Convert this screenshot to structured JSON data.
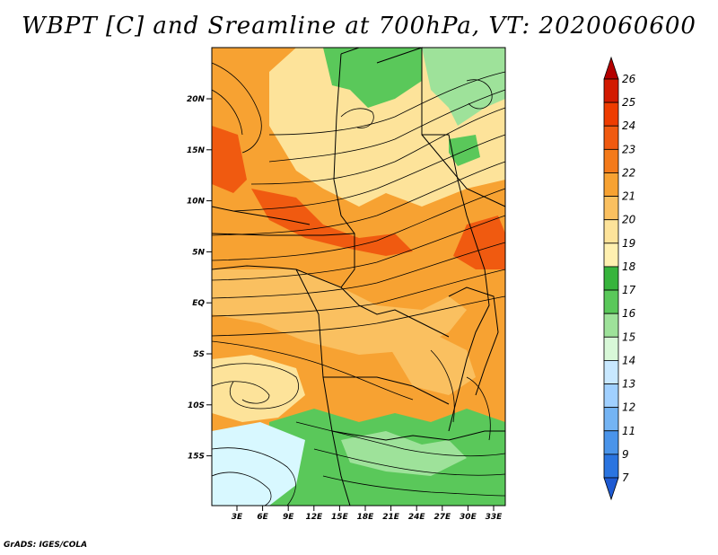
{
  "title": "WBPT [C] and Sreamline at 700hPa, VT: 2020060600",
  "credit": "GrADS: IGES/COLA",
  "lat_labels": [
    "20N",
    "15N",
    "10N",
    "5N",
    "EQ",
    "5S",
    "10S",
    "15S"
  ],
  "lon_labels": [
    "3E",
    "6E",
    "9E",
    "12E",
    "15E",
    "18E",
    "21E",
    "24E",
    "27E",
    "30E",
    "33E"
  ],
  "colorbar": {
    "levels": [
      "26",
      "25",
      "24",
      "23",
      "22",
      "21",
      "20",
      "19",
      "18",
      "17",
      "16",
      "15",
      "14",
      "13",
      "12",
      "11",
      "9",
      "7"
    ],
    "colors": [
      "#b40000",
      "#d21a00",
      "#ee3c00",
      "#f05a10",
      "#f47a1a",
      "#f7a232",
      "#fac060",
      "#fde39a",
      "#fff0b0",
      "#37b43c",
      "#5ac85a",
      "#9ee29a",
      "#d8f8d8",
      "#c8e8ff",
      "#a0d0ff",
      "#74b4f4",
      "#4a94ea",
      "#2a74e0",
      "#1e5ad2"
    ]
  },
  "map_colors": {
    "warm_core": "#f7a232",
    "hot": "#f05a10",
    "mild": "#fac060",
    "cool": "#fde39a",
    "green": "#5ac85a",
    "lightgreen": "#9ee29a",
    "pale": "#d8f8ff"
  }
}
